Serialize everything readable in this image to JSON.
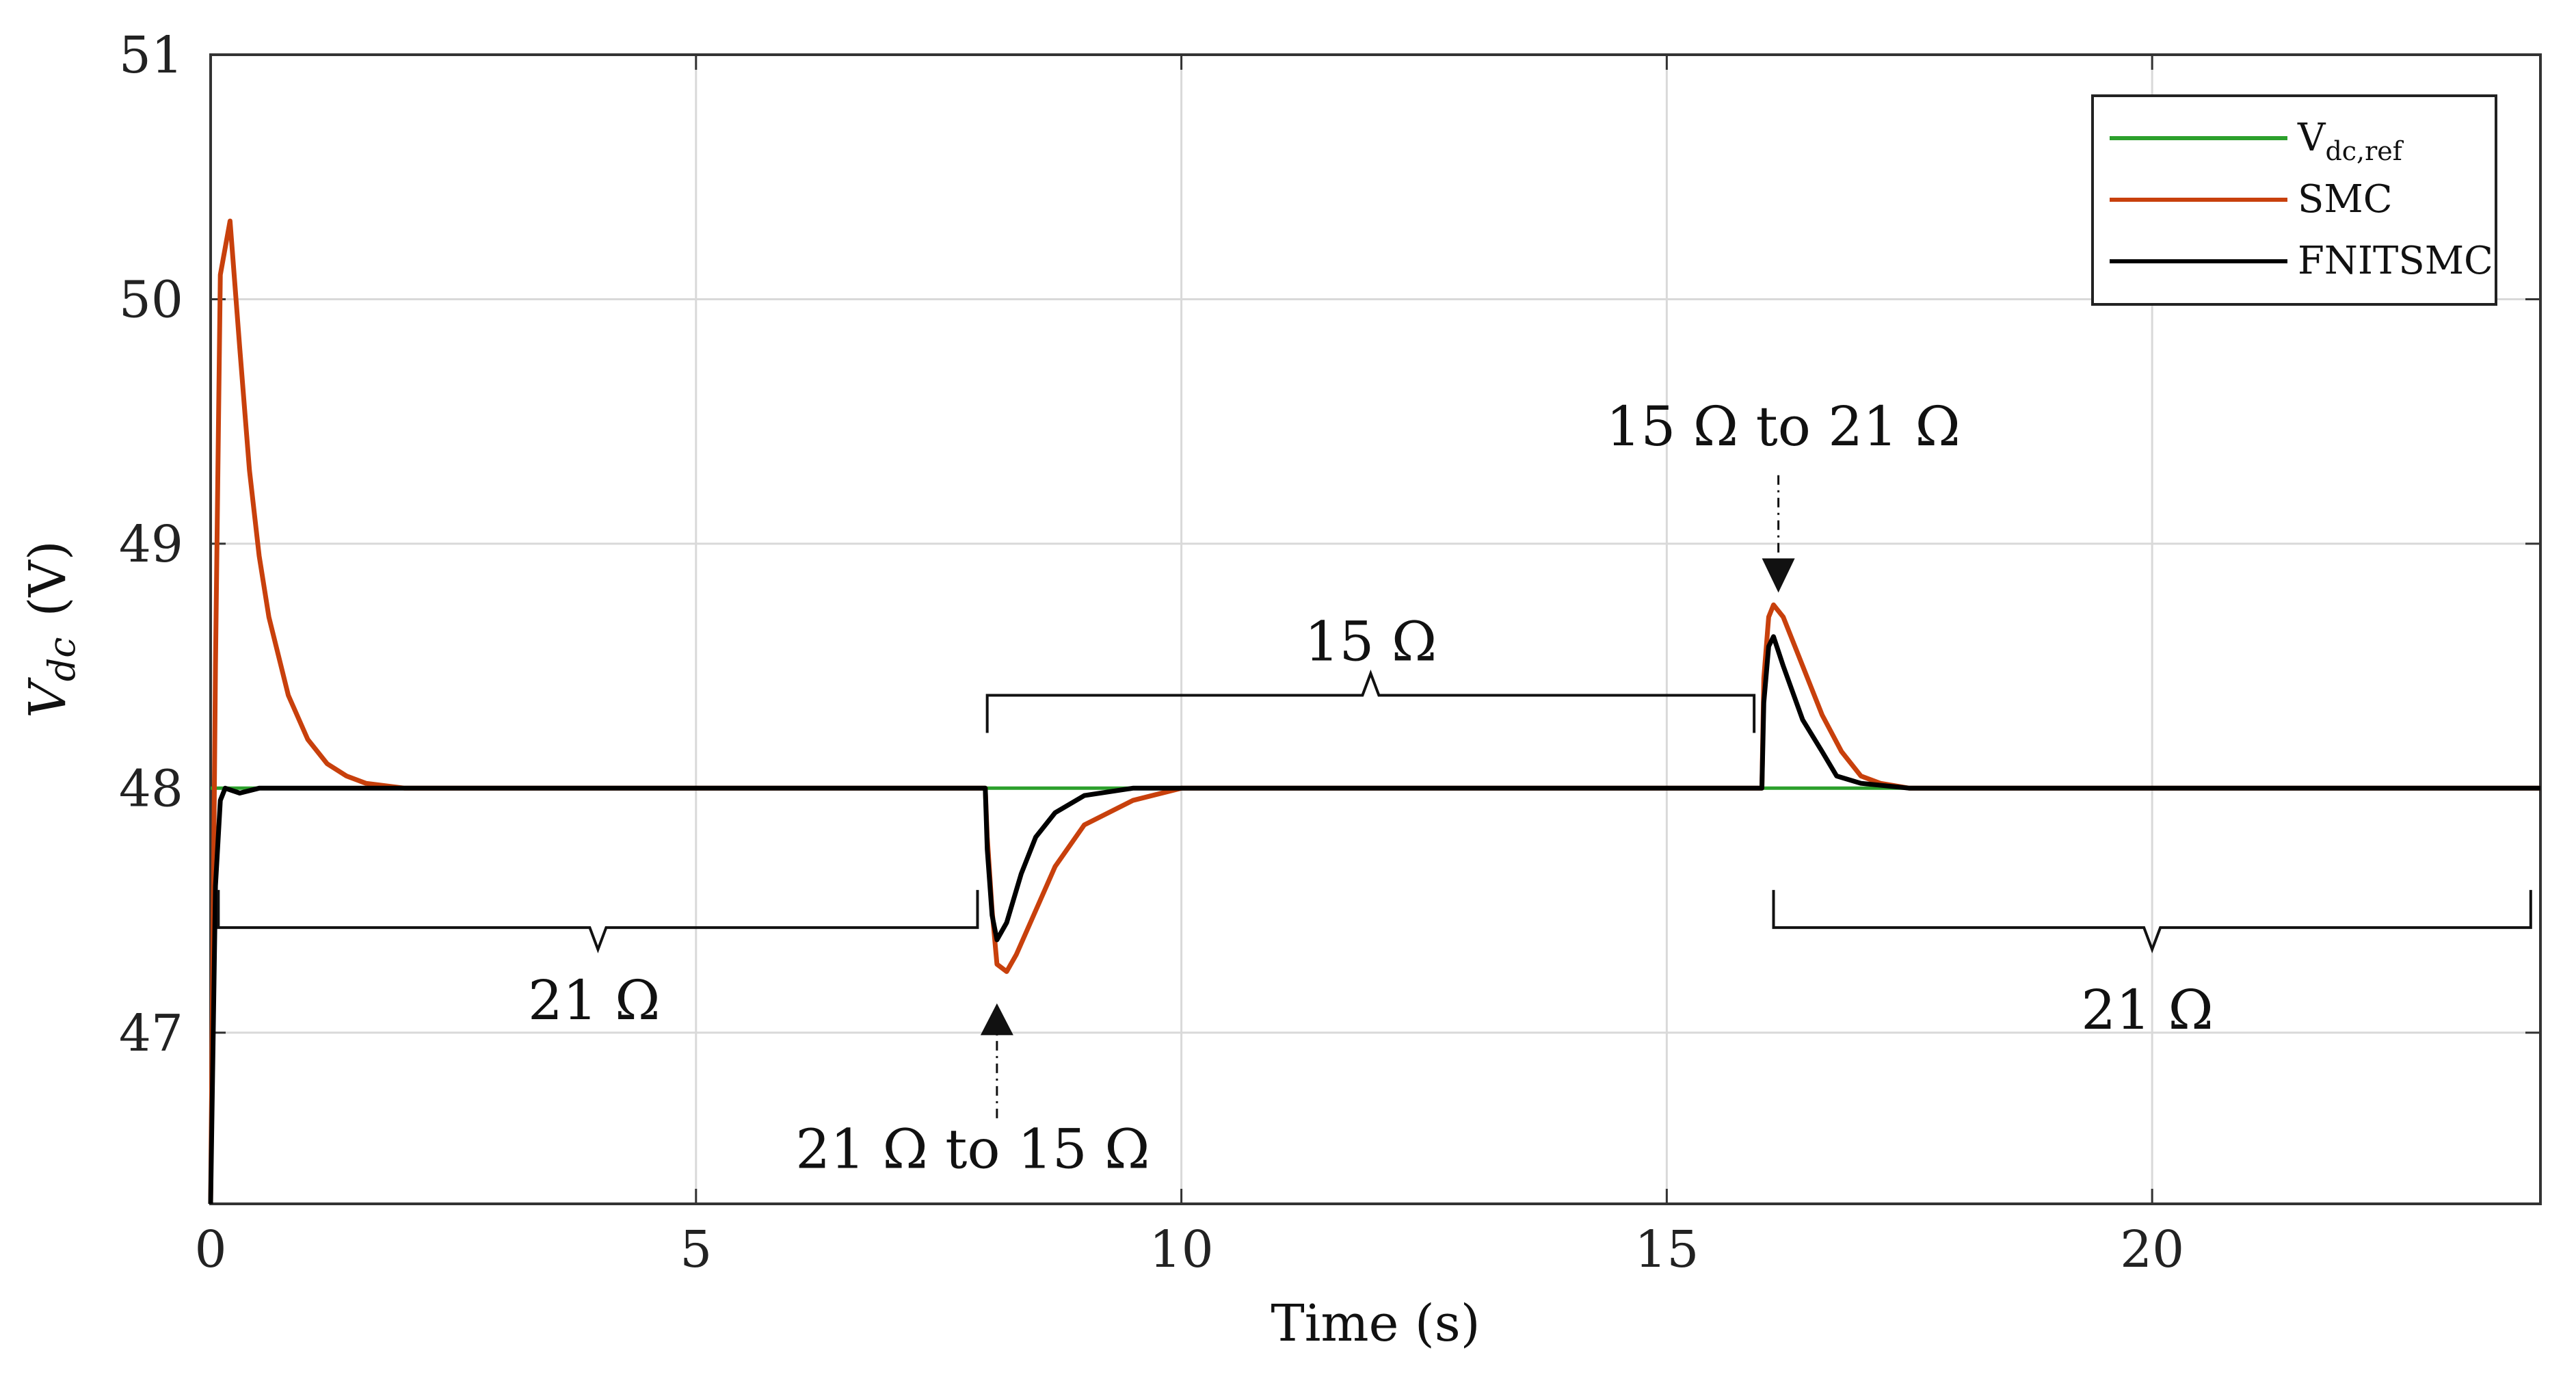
{
  "chart_data": {
    "type": "line",
    "title": "",
    "xlabel": "Time (s)",
    "ylabel_main": "V",
    "ylabel_sub": "dc",
    "ylabel_unit": "(V)",
    "xlim": [
      0,
      24
    ],
    "ylim": [
      46.3,
      51
    ],
    "xticks": [
      0,
      5,
      10,
      15,
      20
    ],
    "yticks": [
      47,
      48,
      49,
      50,
      51
    ],
    "grid": true,
    "legend_position": "top-right",
    "legend": [
      {
        "main": "V",
        "sub": "dc,ref",
        "color": "#2ca02c"
      },
      {
        "main": "SMC",
        "sub": "",
        "color": "#c8400c"
      },
      {
        "main": "FNITSMC",
        "sub": "",
        "color": "#000000"
      }
    ],
    "series": [
      {
        "name": "V_dc,ref",
        "color": "#2ca02c",
        "x": [
          0,
          24
        ],
        "y": [
          48,
          48
        ]
      },
      {
        "name": "SMC",
        "color": "#c8400c",
        "x": [
          0,
          0.05,
          0.1,
          0.2,
          0.3,
          0.4,
          0.5,
          0.6,
          0.8,
          1.0,
          1.2,
          1.4,
          1.6,
          2.0,
          3,
          4,
          5,
          6,
          7,
          7.98,
          8.0,
          8.05,
          8.1,
          8.2,
          8.3,
          8.5,
          8.7,
          9.0,
          9.5,
          10,
          11,
          12,
          13,
          14,
          15,
          15.98,
          16.0,
          16.05,
          16.1,
          16.2,
          16.4,
          16.6,
          16.8,
          17.0,
          17.2,
          17.5,
          18,
          19,
          20,
          21,
          22,
          23,
          24
        ],
        "y": [
          46.3,
          48.5,
          50.1,
          50.32,
          49.8,
          49.3,
          48.95,
          48.7,
          48.38,
          48.2,
          48.1,
          48.05,
          48.02,
          48.0,
          48.0,
          48.0,
          48.0,
          48.0,
          48.0,
          48.0,
          47.8,
          47.5,
          47.28,
          47.25,
          47.32,
          47.5,
          47.68,
          47.85,
          47.95,
          48.0,
          48.0,
          48.0,
          48.0,
          48.0,
          48.0,
          48.0,
          48.45,
          48.7,
          48.75,
          48.7,
          48.5,
          48.3,
          48.15,
          48.05,
          48.02,
          48.0,
          48.0,
          48.0,
          48.0,
          48.0,
          48.0,
          48.0,
          48.0
        ]
      },
      {
        "name": "FNITSMC",
        "color": "#000000",
        "x": [
          0,
          0.05,
          0.1,
          0.15,
          0.3,
          0.5,
          1,
          2,
          3,
          4,
          5,
          6,
          7,
          7.98,
          8.0,
          8.05,
          8.1,
          8.2,
          8.35,
          8.5,
          8.7,
          9.0,
          9.5,
          10,
          11,
          12,
          13,
          14,
          15,
          15.98,
          16.0,
          16.05,
          16.1,
          16.2,
          16.4,
          16.6,
          16.75,
          17.0,
          17.5,
          18,
          19,
          20,
          21,
          22,
          23,
          24
        ],
        "y": [
          46.3,
          47.6,
          47.95,
          48.0,
          47.98,
          48.0,
          48.0,
          48.0,
          48.0,
          48.0,
          48.0,
          48.0,
          48.0,
          48.0,
          47.75,
          47.48,
          47.38,
          47.45,
          47.65,
          47.8,
          47.9,
          47.97,
          48.0,
          48.0,
          48.0,
          48.0,
          48.0,
          48.0,
          48.0,
          48.0,
          48.35,
          48.58,
          48.62,
          48.5,
          48.28,
          48.15,
          48.05,
          48.02,
          48.0,
          48.0,
          48.0,
          48.0,
          48.0,
          48.0,
          48.0,
          48.0
        ]
      }
    ],
    "annotations": {
      "brace_left_label": "21 Ω",
      "brace_mid_label": "15 Ω",
      "brace_right_label": "21 Ω",
      "step_down_label": "21 Ω to 15 Ω",
      "step_up_label": "15 Ω to 21 Ω"
    }
  }
}
